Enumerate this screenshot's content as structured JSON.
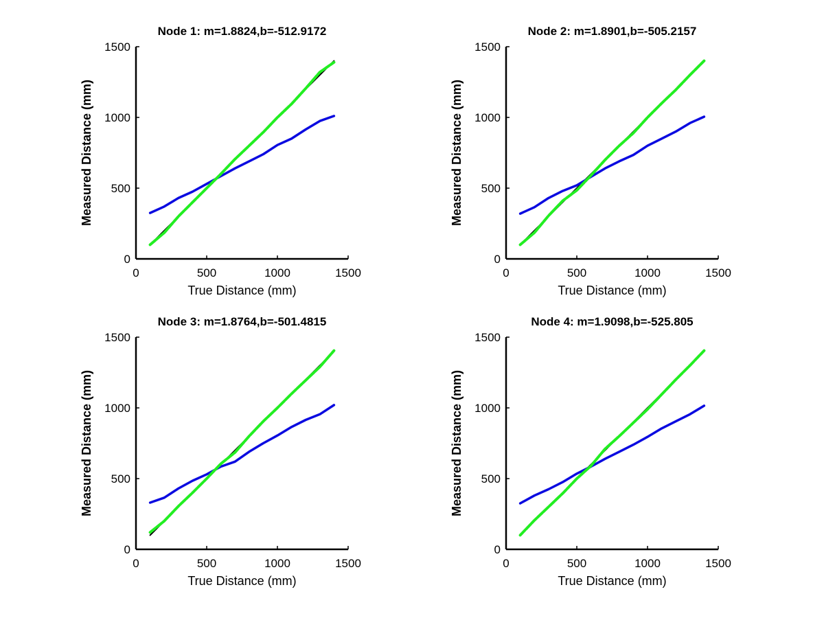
{
  "colors": {
    "ideal": "#000000",
    "raw": "#0b0be0",
    "corrected": "#22ee22",
    "background": "#ffffff"
  },
  "chart_data": [
    {
      "type": "line",
      "title": "Node 1: m=1.8824,b=-512.9172",
      "xlabel": "True Distance (mm)",
      "ylabel": "Measured Distance (mm)",
      "xlim": [
        0,
        1500
      ],
      "ylim": [
        0,
        1500
      ],
      "xticks": [
        "0",
        "500",
        "1000",
        "1500"
      ],
      "yticks": [
        "0",
        "500",
        "1000",
        "1500"
      ],
      "x": [
        100,
        200,
        300,
        400,
        500,
        600,
        700,
        800,
        900,
        1000,
        1100,
        1200,
        1300,
        1400
      ],
      "series": [
        {
          "key": "ideal",
          "values": [
            100,
            200,
            300,
            400,
            500,
            600,
            700,
            800,
            900,
            1000,
            1100,
            1200,
            1300,
            1400
          ]
        },
        {
          "key": "raw",
          "values": [
            325,
            370,
            430,
            475,
            530,
            585,
            640,
            690,
            740,
            805,
            850,
            915,
            975,
            1010
          ]
        },
        {
          "key": "corrected",
          "values": [
            100,
            185,
            300,
            400,
            500,
            600,
            705,
            800,
            895,
            1000,
            1095,
            1205,
            1320,
            1390
          ]
        }
      ]
    },
    {
      "type": "line",
      "title": "Node 2: m=1.8901,b=-505.2157",
      "xlabel": "True Distance (mm)",
      "ylabel": "Measured Distance (mm)",
      "xlim": [
        0,
        1500
      ],
      "ylim": [
        0,
        1500
      ],
      "xticks": [
        "0",
        "500",
        "1000",
        "1500"
      ],
      "yticks": [
        "0",
        "500",
        "1000",
        "1500"
      ],
      "x": [
        100,
        200,
        300,
        400,
        500,
        600,
        700,
        800,
        900,
        1000,
        1100,
        1200,
        1300,
        1400
      ],
      "series": [
        {
          "key": "ideal",
          "values": [
            100,
            200,
            300,
            400,
            500,
            600,
            700,
            800,
            900,
            1000,
            1100,
            1200,
            1300,
            1400
          ]
        },
        {
          "key": "raw",
          "values": [
            320,
            365,
            430,
            480,
            520,
            580,
            640,
            690,
            735,
            800,
            850,
            900,
            960,
            1005
          ]
        },
        {
          "key": "corrected",
          "values": [
            100,
            185,
            305,
            410,
            485,
            590,
            700,
            800,
            890,
            1000,
            1100,
            1195,
            1300,
            1400
          ]
        }
      ]
    },
    {
      "type": "line",
      "title": "Node 3: m=1.8764,b=-501.4815",
      "xlabel": "True Distance (mm)",
      "ylabel": "Measured Distance (mm)",
      "xlim": [
        0,
        1500
      ],
      "ylim": [
        0,
        1500
      ],
      "xticks": [
        "0",
        "500",
        "1000",
        "1500"
      ],
      "yticks": [
        "0",
        "500",
        "1000",
        "1500"
      ],
      "x": [
        100,
        200,
        300,
        400,
        500,
        600,
        700,
        800,
        900,
        1000,
        1100,
        1200,
        1300,
        1400
      ],
      "series": [
        {
          "key": "ideal",
          "values": [
            100,
            200,
            300,
            400,
            500,
            600,
            700,
            800,
            900,
            1000,
            1100,
            1200,
            1300,
            1400
          ]
        },
        {
          "key": "raw",
          "values": [
            330,
            365,
            430,
            485,
            530,
            585,
            620,
            690,
            750,
            805,
            865,
            915,
            955,
            1020
          ]
        },
        {
          "key": "corrected",
          "values": [
            120,
            200,
            305,
            400,
            500,
            605,
            685,
            800,
            905,
            1000,
            1100,
            1195,
            1290,
            1405
          ]
        }
      ]
    },
    {
      "type": "line",
      "title": "Node 4: m=1.9098,b=-525.805",
      "xlabel": "True Distance (mm)",
      "ylabel": "Measured Distance (mm)",
      "xlim": [
        0,
        1500
      ],
      "ylim": [
        0,
        1500
      ],
      "xticks": [
        "0",
        "500",
        "1000",
        "1500"
      ],
      "yticks": [
        "0",
        "500",
        "1000",
        "1500"
      ],
      "x": [
        100,
        200,
        300,
        400,
        500,
        600,
        700,
        800,
        900,
        1000,
        1100,
        1200,
        1300,
        1400
      ],
      "series": [
        {
          "key": "ideal",
          "values": [
            100,
            200,
            300,
            400,
            500,
            600,
            700,
            800,
            900,
            1000,
            1100,
            1200,
            1300,
            1400
          ]
        },
        {
          "key": "raw",
          "values": [
            325,
            380,
            425,
            475,
            535,
            585,
            640,
            690,
            740,
            795,
            855,
            905,
            955,
            1015
          ]
        },
        {
          "key": "corrected",
          "values": [
            100,
            205,
            300,
            395,
            500,
            590,
            710,
            800,
            895,
            990,
            1095,
            1200,
            1300,
            1405
          ]
        }
      ]
    }
  ]
}
